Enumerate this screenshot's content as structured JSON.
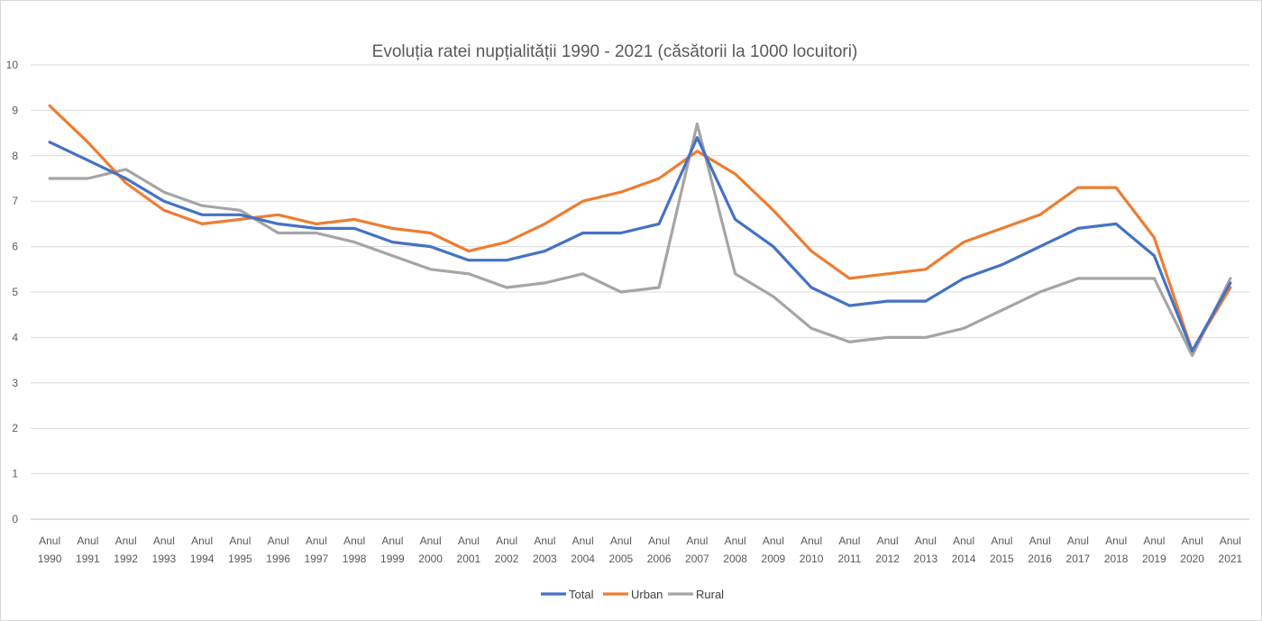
{
  "chart_data": {
    "type": "line",
    "title": "Evoluția ratei nupțialității 1990 - 2021 (căsătorii la 1000 locuitori)",
    "xlabel": "",
    "ylabel": "",
    "ylim": [
      0,
      10
    ],
    "yticks": [
      0,
      1,
      2,
      3,
      4,
      5,
      6,
      7,
      8,
      9,
      10
    ],
    "grid": true,
    "legend_position": "bottom",
    "categories": [
      [
        "Anul",
        "1990"
      ],
      [
        "Anul",
        "1991"
      ],
      [
        "Anul",
        "1992"
      ],
      [
        "Anul",
        "1993"
      ],
      [
        "Anul",
        "1994"
      ],
      [
        "Anul",
        "1995"
      ],
      [
        "Anul",
        "1996"
      ],
      [
        "Anul",
        "1997"
      ],
      [
        "Anul",
        "1998"
      ],
      [
        "Anul",
        "1999"
      ],
      [
        "Anul",
        "2000"
      ],
      [
        "Anul",
        "2001"
      ],
      [
        "Anul",
        "2002"
      ],
      [
        "Anul",
        "2003"
      ],
      [
        "Anul",
        "2004"
      ],
      [
        "Anul",
        "2005"
      ],
      [
        "Anul",
        "2006"
      ],
      [
        "Anul",
        "2007"
      ],
      [
        "Anul",
        "2008"
      ],
      [
        "Anul",
        "2009"
      ],
      [
        "Anul",
        "2010"
      ],
      [
        "Anul",
        "2011"
      ],
      [
        "Anul",
        "2012"
      ],
      [
        "Anul",
        "2013"
      ],
      [
        "Anul",
        "2014"
      ],
      [
        "Anul",
        "2015"
      ],
      [
        "Anul",
        "2016"
      ],
      [
        "Anul",
        "2017"
      ],
      [
        "Anul",
        "2018"
      ],
      [
        "Anul",
        "2019"
      ],
      [
        "Anul",
        "2020"
      ],
      [
        "Anul",
        "2021"
      ]
    ],
    "series": [
      {
        "name": "Total",
        "color": "#4472c4",
        "values": [
          8.3,
          7.9,
          7.5,
          7.0,
          6.7,
          6.7,
          6.5,
          6.4,
          6.4,
          6.1,
          6.0,
          5.7,
          5.7,
          5.9,
          6.3,
          6.3,
          6.5,
          8.4,
          6.6,
          6.0,
          5.1,
          4.7,
          4.8,
          4.8,
          5.3,
          5.6,
          6.0,
          6.4,
          6.5,
          5.8,
          3.7,
          5.2
        ]
      },
      {
        "name": "Urban",
        "color": "#ed7d31",
        "values": [
          9.1,
          8.3,
          7.4,
          6.8,
          6.5,
          6.6,
          6.7,
          6.5,
          6.6,
          6.4,
          6.3,
          5.9,
          6.1,
          6.5,
          7.0,
          7.2,
          7.5,
          8.1,
          7.6,
          6.8,
          5.9,
          5.3,
          5.4,
          5.5,
          6.1,
          6.4,
          6.7,
          7.3,
          7.3,
          6.2,
          3.7,
          5.1
        ]
      },
      {
        "name": "Rural",
        "color": "#a5a5a5",
        "values": [
          7.5,
          7.5,
          7.7,
          7.2,
          6.9,
          6.8,
          6.3,
          6.3,
          6.1,
          5.8,
          5.5,
          5.4,
          5.1,
          5.2,
          5.4,
          5.0,
          5.1,
          8.7,
          5.4,
          4.9,
          4.2,
          3.9,
          4.0,
          4.0,
          4.2,
          4.6,
          5.0,
          5.3,
          5.3,
          5.3,
          3.6,
          5.3
        ]
      }
    ]
  }
}
